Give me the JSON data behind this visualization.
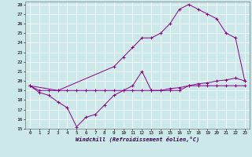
{
  "xlabel": "Windchill (Refroidissement éolien,°C)",
  "bg_color": "#cce8e8",
  "line_color": "#880088",
  "xlim": [
    -0.5,
    23.5
  ],
  "ylim": [
    15,
    28.3
  ],
  "yticks": [
    15,
    16,
    17,
    18,
    19,
    20,
    21,
    22,
    23,
    24,
    25,
    26,
    27,
    28
  ],
  "xticks": [
    0,
    1,
    2,
    3,
    4,
    5,
    6,
    7,
    8,
    9,
    10,
    11,
    12,
    13,
    14,
    15,
    16,
    17,
    18,
    19,
    20,
    21,
    22,
    23
  ],
  "curve_flat_x": [
    0,
    1,
    2,
    3,
    4,
    5,
    6,
    7,
    8,
    9,
    10,
    11,
    12,
    13,
    14,
    15,
    16,
    17,
    18,
    19,
    20,
    21,
    22,
    23
  ],
  "curve_flat_y": [
    19.5,
    19.0,
    19.0,
    19.0,
    19.0,
    19.0,
    19.0,
    19.0,
    19.0,
    19.0,
    19.0,
    19.0,
    19.0,
    19.0,
    19.0,
    19.2,
    19.3,
    19.5,
    19.7,
    19.8,
    20.0,
    20.1,
    20.3,
    20.0
  ],
  "curve_dip_x": [
    0,
    1,
    2,
    3,
    4,
    5,
    6,
    7,
    8,
    9,
    10,
    11,
    12,
    13,
    14,
    15,
    16,
    17,
    18,
    19,
    20,
    21,
    22,
    23
  ],
  "curve_dip_y": [
    19.5,
    18.8,
    18.5,
    17.8,
    17.2,
    15.2,
    16.2,
    16.5,
    17.5,
    18.5,
    19.0,
    19.5,
    21.0,
    19.0,
    19.0,
    19.0,
    19.0,
    19.5,
    19.5,
    19.5,
    19.5,
    19.5,
    19.5,
    19.5
  ],
  "curve_arch_x": [
    0,
    3,
    9,
    10,
    11,
    12,
    13,
    14,
    15,
    16,
    17,
    18,
    19,
    20,
    21,
    22,
    23
  ],
  "curve_arch_y": [
    19.5,
    19.0,
    21.5,
    22.5,
    23.5,
    24.5,
    24.5,
    25.0,
    26.0,
    27.5,
    28.0,
    27.5,
    27.0,
    26.5,
    25.0,
    24.5,
    20.0
  ]
}
